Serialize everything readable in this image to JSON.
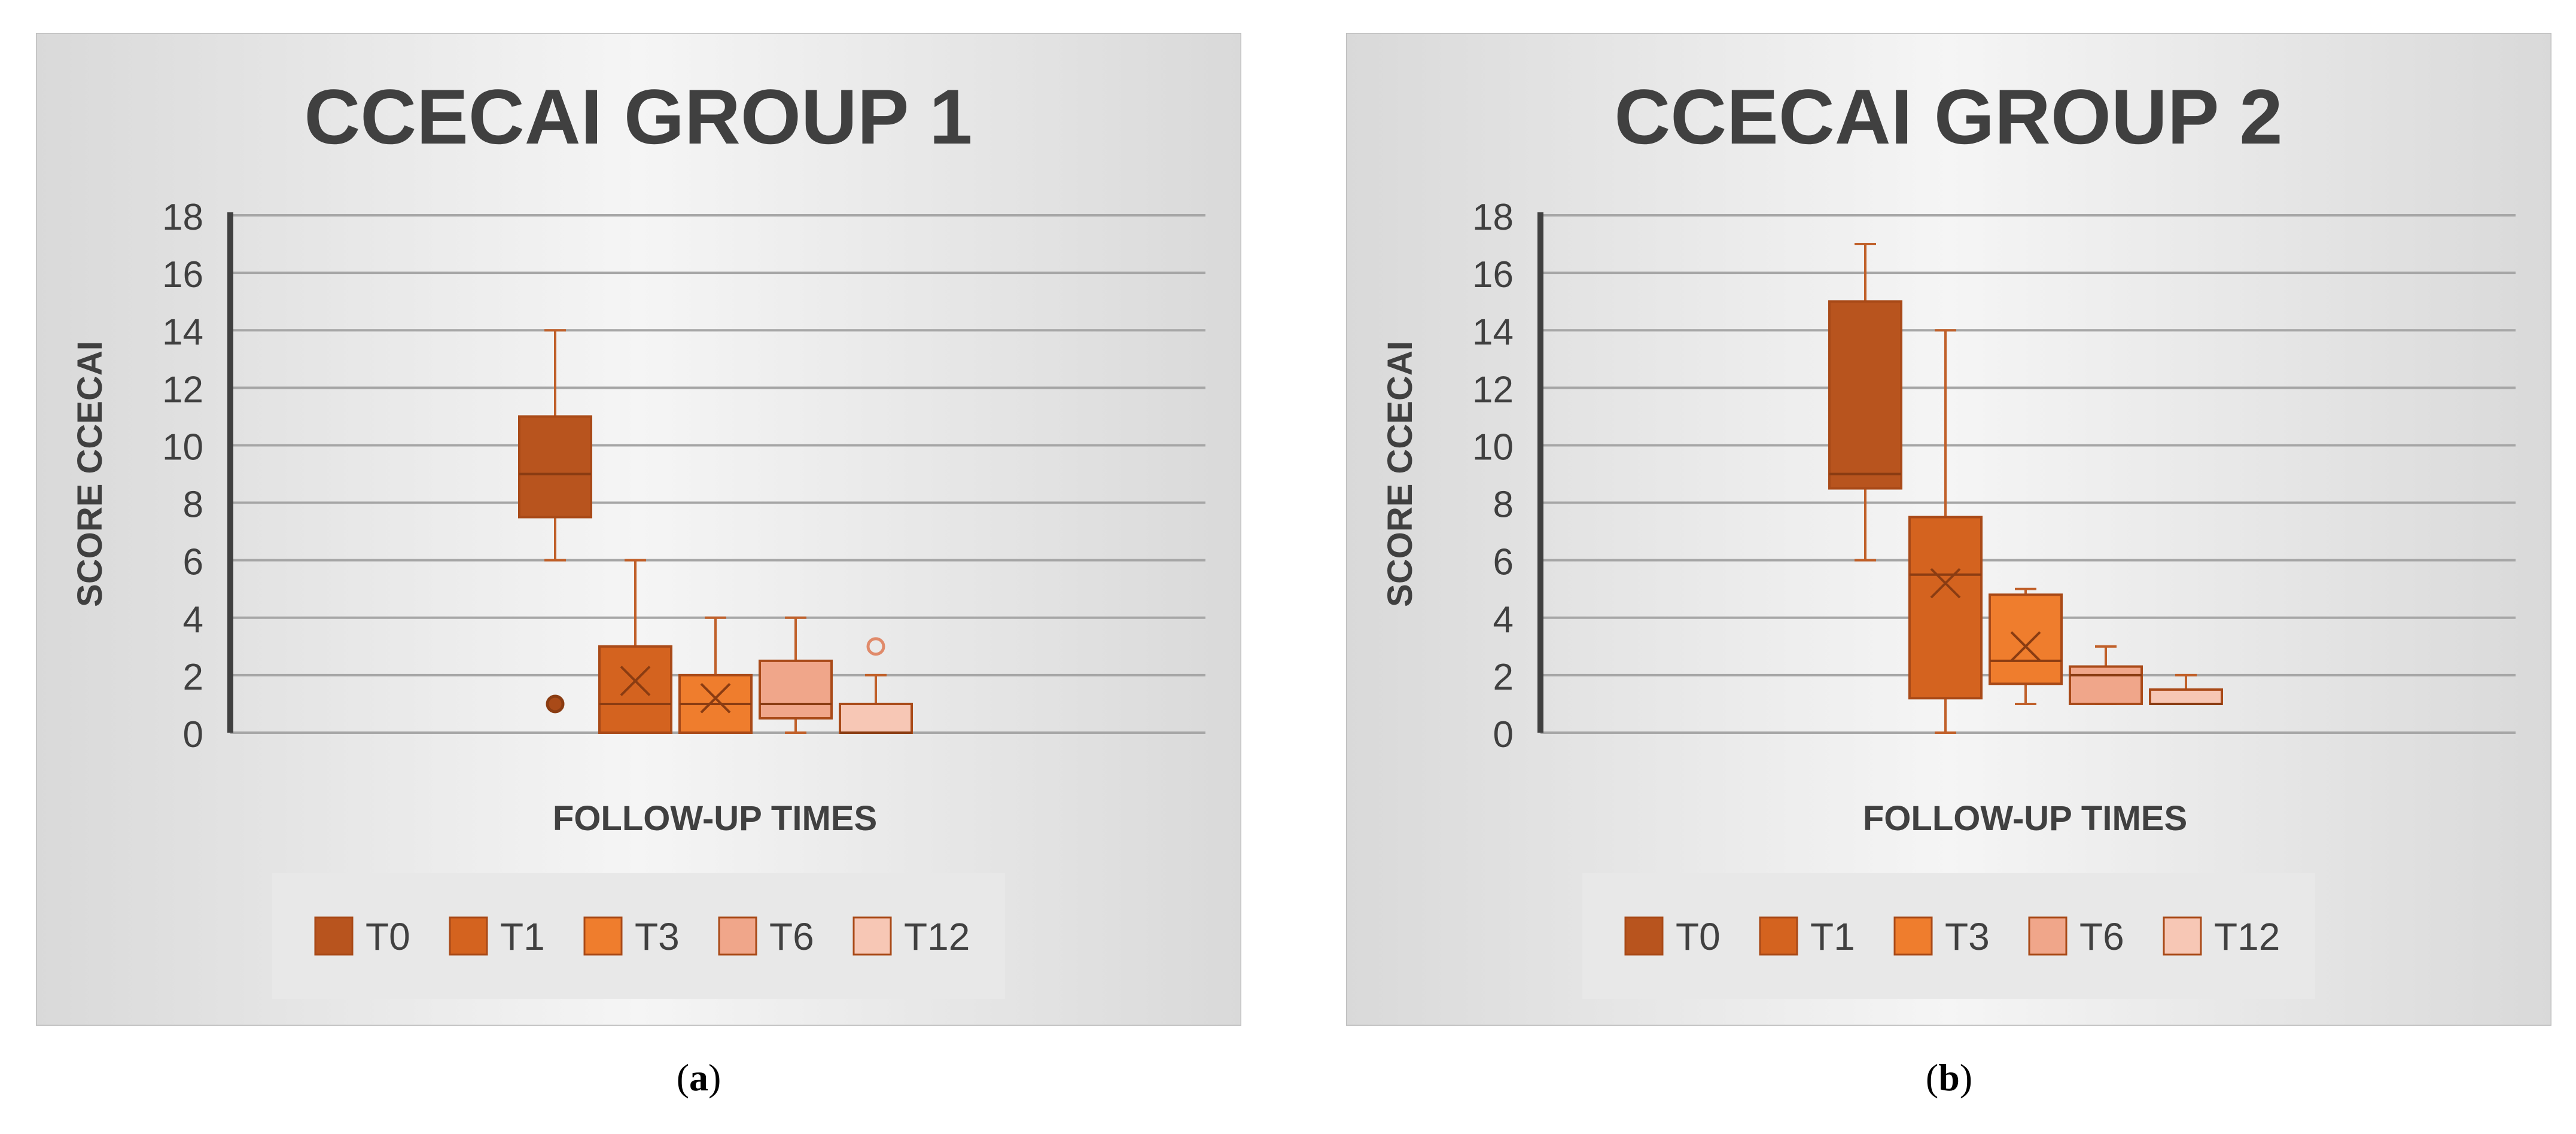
{
  "captions": [
    "(a)",
    "(b)"
  ],
  "chart_data": [
    {
      "type": "box",
      "title": "CCECAI GROUP 1",
      "xlabel": "FOLLOW-UP TIMES",
      "ylabel": "SCORE CCECAI",
      "ylim": [
        0,
        18
      ],
      "yticks": [
        0,
        2,
        4,
        6,
        8,
        10,
        12,
        14,
        16,
        18
      ],
      "grid": true,
      "legend": "bottom",
      "series": [
        {
          "name": "T0",
          "color": "#b8541e",
          "whisker_low": 6,
          "q1": 7.5,
          "median": 9,
          "q3": 11,
          "whisker_high": 14,
          "mean": null,
          "outliers": [
            1
          ],
          "outlier_filled": true
        },
        {
          "name": "T1",
          "color": "#d4631f",
          "whisker_low": 0,
          "q1": 0,
          "median": 1,
          "q3": 3,
          "whisker_high": 6,
          "mean": 1.8,
          "outliers": [],
          "outlier_filled": false
        },
        {
          "name": "T3",
          "color": "#ef7d2d",
          "whisker_low": 0,
          "q1": 0,
          "median": 1,
          "q3": 2,
          "whisker_high": 4,
          "mean": 1.2,
          "outliers": [],
          "outlier_filled": false
        },
        {
          "name": "T6",
          "color": "#f0a68a",
          "whisker_low": 0,
          "q1": 0.5,
          "median": 1,
          "q3": 2.5,
          "whisker_high": 4,
          "mean": null,
          "outliers": [],
          "outlier_filled": false
        },
        {
          "name": "T12",
          "color": "#f7c7b5",
          "whisker_low": 0,
          "q1": 0,
          "median": 0,
          "q3": 1,
          "whisker_high": 2,
          "mean": null,
          "outliers": [
            3
          ],
          "outlier_filled": false
        }
      ]
    },
    {
      "type": "box",
      "title": "CCECAI GROUP 2",
      "xlabel": "FOLLOW-UP TIMES",
      "ylabel": "SCORE CCECAI",
      "ylim": [
        0,
        18
      ],
      "yticks": [
        0,
        2,
        4,
        6,
        8,
        10,
        12,
        14,
        16,
        18
      ],
      "grid": true,
      "legend": "bottom",
      "series": [
        {
          "name": "T0",
          "color": "#b8541e",
          "whisker_low": 6,
          "q1": 8.5,
          "median": 9,
          "q3": 15,
          "whisker_high": 17,
          "mean": null,
          "outliers": [],
          "outlier_filled": true
        },
        {
          "name": "T1",
          "color": "#d4631f",
          "whisker_low": 0,
          "q1": 1.2,
          "median": 5.5,
          "q3": 7.5,
          "whisker_high": 14,
          "mean": 5.2,
          "outliers": [],
          "outlier_filled": false
        },
        {
          "name": "T3",
          "color": "#ef7d2d",
          "whisker_low": 1,
          "q1": 1.7,
          "median": 2.5,
          "q3": 4.8,
          "whisker_high": 5,
          "mean": 3,
          "outliers": [],
          "outlier_filled": false
        },
        {
          "name": "T6",
          "color": "#f0a68a",
          "whisker_low": 1,
          "q1": 1,
          "median": 2,
          "q3": 2.3,
          "whisker_high": 3,
          "mean": null,
          "outliers": [],
          "outlier_filled": false
        },
        {
          "name": "T12",
          "color": "#f7c7b5",
          "whisker_low": 1,
          "q1": 1,
          "median": 1,
          "q3": 1.5,
          "whisker_high": 2,
          "mean": null,
          "outliers": [],
          "outlier_filled": false
        }
      ]
    }
  ]
}
